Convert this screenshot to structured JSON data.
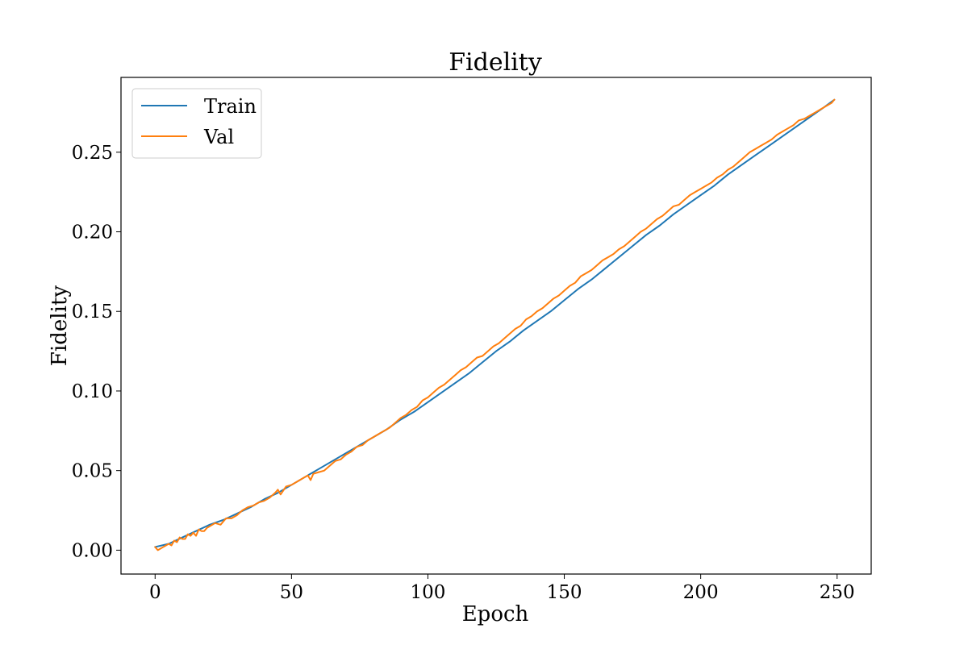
{
  "chart_data": {
    "type": "line",
    "title": "Fidelity",
    "xlabel": "Epoch",
    "ylabel": "Fidelity",
    "xlim": [
      -12.5,
      262.5
    ],
    "ylim": [
      -0.015,
      0.297
    ],
    "xticks": [
      0,
      50,
      100,
      150,
      200,
      250
    ],
    "xtick_labels": [
      "0",
      "50",
      "100",
      "150",
      "200",
      "250"
    ],
    "yticks": [
      0.0,
      0.05,
      0.1,
      0.15,
      0.2,
      0.25
    ],
    "ytick_labels": [
      "0.00",
      "0.05",
      "0.10",
      "0.15",
      "0.20",
      "0.25"
    ],
    "grid": false,
    "legend_position": "upper-left",
    "series": [
      {
        "name": "Train",
        "color": "#1f77b4",
        "x": [
          0,
          5,
          10,
          15,
          20,
          25,
          30,
          35,
          40,
          45,
          50,
          55,
          60,
          65,
          70,
          75,
          80,
          85,
          90,
          95,
          100,
          105,
          110,
          115,
          120,
          125,
          130,
          135,
          140,
          145,
          150,
          155,
          160,
          165,
          170,
          175,
          180,
          185,
          190,
          195,
          200,
          205,
          210,
          215,
          220,
          225,
          230,
          235,
          240,
          245,
          249
        ],
        "y": [
          0.002,
          0.004,
          0.008,
          0.012,
          0.016,
          0.019,
          0.023,
          0.027,
          0.032,
          0.036,
          0.041,
          0.046,
          0.051,
          0.056,
          0.061,
          0.066,
          0.071,
          0.076,
          0.082,
          0.087,
          0.093,
          0.099,
          0.105,
          0.111,
          0.118,
          0.125,
          0.131,
          0.138,
          0.144,
          0.15,
          0.157,
          0.164,
          0.17,
          0.177,
          0.184,
          0.191,
          0.198,
          0.204,
          0.211,
          0.217,
          0.223,
          0.229,
          0.236,
          0.242,
          0.248,
          0.254,
          0.26,
          0.266,
          0.272,
          0.278,
          0.283
        ]
      },
      {
        "name": "Val",
        "color": "#ff7f0e",
        "x": [
          0,
          1,
          2,
          3,
          4,
          5,
          6,
          7,
          8,
          9,
          10,
          11,
          12,
          13,
          14,
          15,
          16,
          17,
          18,
          19,
          20,
          22,
          24,
          26,
          28,
          30,
          32,
          34,
          36,
          38,
          40,
          42,
          44,
          45,
          46,
          48,
          50,
          52,
          54,
          56,
          57,
          58,
          60,
          62,
          64,
          66,
          68,
          70,
          72,
          74,
          76,
          78,
          80,
          82,
          84,
          86,
          88,
          90,
          92,
          94,
          95,
          96,
          98,
          100,
          102,
          104,
          106,
          108,
          110,
          112,
          114,
          116,
          118,
          120,
          122,
          124,
          126,
          128,
          130,
          132,
          134,
          136,
          138,
          140,
          142,
          144,
          146,
          148,
          150,
          152,
          154,
          156,
          158,
          160,
          162,
          164,
          166,
          168,
          170,
          172,
          174,
          176,
          178,
          180,
          182,
          184,
          186,
          188,
          190,
          192,
          194,
          196,
          198,
          200,
          202,
          204,
          206,
          208,
          210,
          212,
          214,
          216,
          218,
          220,
          222,
          224,
          226,
          228,
          230,
          232,
          234,
          236,
          238,
          240,
          242,
          244,
          246,
          248,
          249
        ],
        "y": [
          0.002,
          0.0,
          0.001,
          0.002,
          0.003,
          0.004,
          0.003,
          0.006,
          0.005,
          0.008,
          0.007,
          0.007,
          0.01,
          0.009,
          0.011,
          0.009,
          0.013,
          0.012,
          0.012,
          0.014,
          0.015,
          0.017,
          0.016,
          0.02,
          0.02,
          0.022,
          0.025,
          0.027,
          0.028,
          0.03,
          0.031,
          0.033,
          0.036,
          0.038,
          0.035,
          0.04,
          0.041,
          0.043,
          0.045,
          0.047,
          0.044,
          0.048,
          0.049,
          0.05,
          0.053,
          0.056,
          0.057,
          0.06,
          0.062,
          0.065,
          0.066,
          0.069,
          0.071,
          0.073,
          0.075,
          0.077,
          0.08,
          0.083,
          0.085,
          0.088,
          0.089,
          0.09,
          0.094,
          0.096,
          0.099,
          0.102,
          0.104,
          0.107,
          0.11,
          0.113,
          0.115,
          0.118,
          0.121,
          0.122,
          0.125,
          0.128,
          0.13,
          0.133,
          0.136,
          0.139,
          0.141,
          0.145,
          0.147,
          0.15,
          0.152,
          0.155,
          0.158,
          0.16,
          0.163,
          0.166,
          0.168,
          0.172,
          0.174,
          0.176,
          0.179,
          0.182,
          0.184,
          0.186,
          0.189,
          0.191,
          0.194,
          0.197,
          0.2,
          0.202,
          0.205,
          0.208,
          0.21,
          0.213,
          0.216,
          0.217,
          0.22,
          0.223,
          0.225,
          0.227,
          0.229,
          0.231,
          0.234,
          0.236,
          0.239,
          0.241,
          0.244,
          0.247,
          0.25,
          0.252,
          0.254,
          0.256,
          0.258,
          0.261,
          0.263,
          0.265,
          0.267,
          0.27,
          0.271,
          0.273,
          0.275,
          0.277,
          0.279,
          0.281,
          0.283
        ]
      }
    ]
  }
}
